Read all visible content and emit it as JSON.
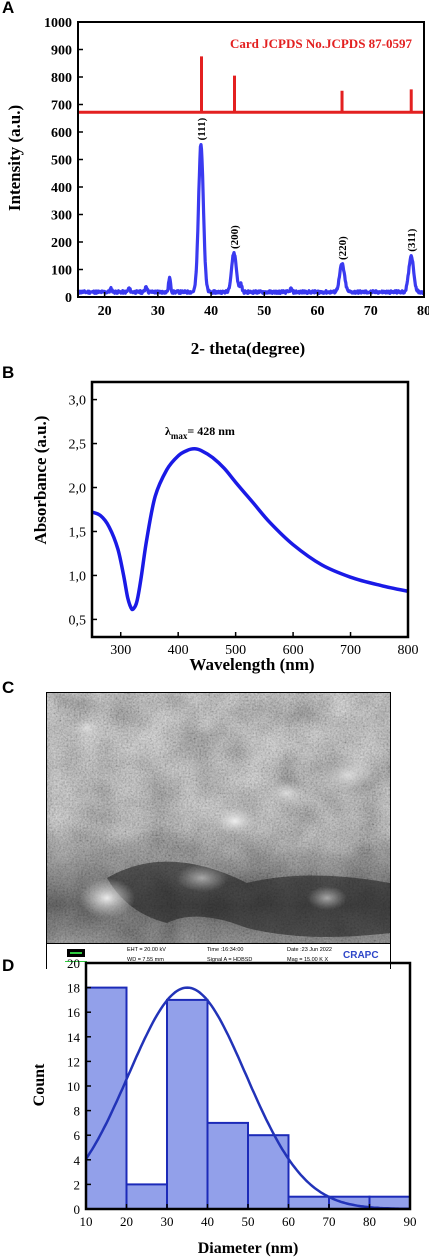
{
  "panels": {
    "a": "A",
    "b": "B",
    "c": "C",
    "d": "D"
  },
  "chart_data": [
    {
      "type": "line",
      "panel": "A",
      "xlabel": "2- theta(degree)",
      "ylabel": "Intensity (a.u.)",
      "xlim": [
        15,
        80
      ],
      "ylim": [
        0,
        1000
      ],
      "xticks": [
        20,
        30,
        40,
        50,
        60,
        70,
        80
      ],
      "yticks": [
        0,
        100,
        200,
        300,
        400,
        500,
        600,
        700,
        800,
        900,
        1000
      ],
      "line_color": "#3a3af0",
      "reference_color": "#e32020",
      "reference_label": "Card JCPDS No.JCPDS 87-0597",
      "reference_baseline": 672,
      "reference_peaks": [
        {
          "x": 38.2,
          "y": 875
        },
        {
          "x": 44.4,
          "y": 805
        },
        {
          "x": 64.6,
          "y": 750
        },
        {
          "x": 77.6,
          "y": 755
        }
      ],
      "peaks": [
        {
          "x": 38.1,
          "y": 555,
          "label": "(111)"
        },
        {
          "x": 44.3,
          "y": 160,
          "label": "(200)"
        },
        {
          "x": 64.6,
          "y": 120,
          "label": "(220)"
        },
        {
          "x": 77.6,
          "y": 150,
          "label": "(311)"
        }
      ],
      "minor_peaks": [
        {
          "x": 32.2,
          "y": 70
        },
        {
          "x": 27.8,
          "y": 40
        },
        {
          "x": 24.6,
          "y": 32
        },
        {
          "x": 21.2,
          "y": 30
        },
        {
          "x": 45.6,
          "y": 48
        },
        {
          "x": 55.0,
          "y": 30
        }
      ],
      "background_level": 18
    },
    {
      "type": "line",
      "panel": "B",
      "xlabel": "Wavelength (nm)",
      "ylabel": "Absorbance (a.u.)",
      "xlim": [
        250,
        800
      ],
      "ylim": [
        0.3,
        3.2
      ],
      "xticks": [
        300,
        400,
        500,
        600,
        700,
        800
      ],
      "yticks": [
        "0,5",
        "1,0",
        "1,5",
        "2,0",
        "2,5",
        "3,0"
      ],
      "ytick_values": [
        0.5,
        1.0,
        1.5,
        2.0,
        2.5,
        3.0
      ],
      "line_color": "#1a1ae6",
      "annotation": {
        "symbol": "λ",
        "subscript": "max",
        "text": "= 428 nm",
        "x": 428
      },
      "x": [
        250,
        265,
        280,
        295,
        305,
        312,
        318,
        322,
        328,
        335,
        345,
        360,
        380,
        400,
        415,
        428,
        440,
        460,
        480,
        500,
        530,
        560,
        600,
        650,
        700,
        750,
        800
      ],
      "y": [
        1.72,
        1.68,
        1.55,
        1.3,
        1.0,
        0.75,
        0.63,
        0.62,
        0.7,
        0.95,
        1.4,
        1.9,
        2.2,
        2.36,
        2.42,
        2.44,
        2.42,
        2.34,
        2.22,
        2.06,
        1.83,
        1.6,
        1.35,
        1.12,
        0.98,
        0.89,
        0.82
      ]
    },
    {
      "type": "bar",
      "panel": "D",
      "xlabel": "Diameter (nm)",
      "ylabel": "Count",
      "xlim": [
        10,
        90
      ],
      "ylim": [
        0,
        20
      ],
      "xticks": [
        10,
        20,
        30,
        40,
        50,
        60,
        70,
        80,
        90
      ],
      "yticks": [
        0,
        2,
        4,
        6,
        8,
        10,
        12,
        14,
        16,
        18,
        20
      ],
      "bar_fill": "#7f8fe6",
      "bar_edge": "#1c2ab8",
      "fit_color": "#2233b8",
      "bins": [
        {
          "from": 10,
          "to": 20,
          "count": 18
        },
        {
          "from": 20,
          "to": 30,
          "count": 2
        },
        {
          "from": 30,
          "to": 40,
          "count": 17
        },
        {
          "from": 40,
          "to": 50,
          "count": 7
        },
        {
          "from": 50,
          "to": 60,
          "count": 6
        },
        {
          "from": 60,
          "to": 70,
          "count": 1
        },
        {
          "from": 70,
          "to": 80,
          "count": 1
        },
        {
          "from": 80,
          "to": 90,
          "count": 1
        }
      ],
      "gaussian_fit": {
        "center": 35,
        "peak": 18,
        "sigma": 14.5
      }
    }
  ],
  "sem": {
    "eht": "EHT = 20.00 kV",
    "wd": "WD = 7.55 mm",
    "time": "Time :16:34:00",
    "signal": "Signal A = HDBSD",
    "date": "Date :23 Jun 2022",
    "mag": "Mag =   15.00 K X",
    "logo": "CRAPC",
    "scale_color": "#2ecc40",
    "logo_color": "#2e46c8"
  }
}
